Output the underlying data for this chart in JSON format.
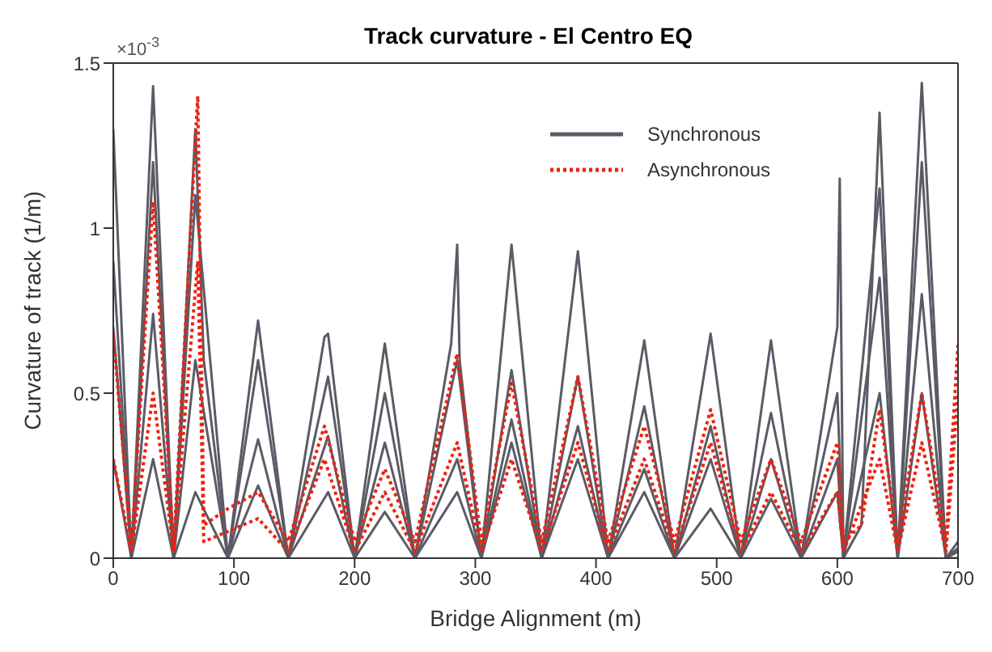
{
  "chart_data": {
    "type": "line",
    "title": "Track curvature - El Centro EQ",
    "xlabel": "Bridge Alignment (m)",
    "ylabel": "Curvature of track (1/m)",
    "annotations": [
      "×10$^{-3}$"
    ],
    "xlim": [
      0,
      700
    ],
    "xticks": [
      0,
      100,
      200,
      300,
      400,
      500,
      600,
      700
    ],
    "ylim": [
      0,
      1.5
    ],
    "yticks": [
      0,
      0.5,
      1,
      1.5
    ],
    "legend": "top right",
    "marker": "none",
    "series": [
      {
        "name": "Synchronous",
        "color": "#5b5b66",
        "line_style": "solid",
        "x": [
          0,
          15,
          33,
          50,
          68,
          75,
          95,
          120,
          145,
          175,
          178,
          200,
          225,
          250,
          280,
          285,
          287,
          305,
          330,
          355,
          385,
          410,
          440,
          465,
          495,
          520,
          545,
          570,
          600,
          602,
          605,
          620,
          635,
          650,
          670,
          690,
          700
        ],
        "values": [
          1.3,
          0,
          1.43,
          0,
          1.3,
          0.6,
          0,
          0.72,
          0,
          0.67,
          0.68,
          0,
          0.65,
          0,
          0.65,
          0.95,
          0.6,
          0,
          0.95,
          0,
          0.93,
          0,
          0.66,
          0,
          0.68,
          0,
          0.66,
          0,
          0.7,
          1.15,
          0,
          0.1,
          1.35,
          0,
          1.44,
          0,
          0.05
        ]
      },
      {
        "color": "#5b5b66",
        "line_style": "solid",
        "x": [
          0,
          15,
          33,
          50,
          68,
          95,
          120,
          145,
          178,
          200,
          225,
          250,
          285,
          305,
          330,
          355,
          385,
          410,
          440,
          465,
          495,
          520,
          545,
          570,
          600,
          605,
          635,
          650,
          670,
          690,
          700
        ],
        "values": [
          0.9,
          0,
          1.2,
          0,
          1.1,
          0,
          0.6,
          0,
          0.55,
          0,
          0.5,
          0,
          0.6,
          0,
          0.57,
          0,
          0.55,
          0,
          0.46,
          0,
          0.4,
          0,
          0.44,
          0,
          0.5,
          0,
          1.12,
          0,
          1.2,
          0,
          0.03
        ]
      },
      {
        "color": "#5b5b66",
        "line_style": "solid",
        "x": [
          0,
          15,
          33,
          50,
          68,
          95,
          120,
          145,
          178,
          200,
          225,
          250,
          285,
          305,
          330,
          355,
          385,
          410,
          440,
          465,
          495,
          520,
          545,
          570,
          600,
          605,
          635,
          650,
          670,
          690,
          700
        ],
        "values": [
          0.7,
          0,
          0.74,
          0,
          0.6,
          0,
          0.36,
          0,
          0.37,
          0,
          0.35,
          0,
          0.3,
          0,
          0.42,
          0,
          0.4,
          0,
          0.27,
          0,
          0.3,
          0,
          0.3,
          0,
          0.3,
          0,
          0.85,
          0,
          0.8,
          0,
          0.02
        ]
      },
      {
        "color": "#5b5b66",
        "line_style": "solid",
        "x": [
          0,
          15,
          33,
          50,
          68,
          95,
          120,
          145,
          178,
          200,
          225,
          250,
          285,
          305,
          330,
          355,
          385,
          410,
          440,
          465,
          495,
          520,
          545,
          570,
          600,
          605,
          635,
          650,
          670,
          690,
          700
        ],
        "values": [
          0.3,
          0,
          0.3,
          0,
          0.2,
          0,
          0.22,
          0,
          0.2,
          0,
          0.14,
          0,
          0.2,
          0,
          0.35,
          0,
          0.3,
          0,
          0.2,
          0,
          0.15,
          0,
          0.18,
          0,
          0.2,
          0,
          0.5,
          0,
          0.5,
          0,
          0
        ]
      },
      {
        "name": "Asynchronous",
        "color": "#ee2211",
        "line_style": "dotted",
        "x": [
          0,
          15,
          33,
          50,
          70,
          75,
          95,
          120,
          145,
          175,
          200,
          225,
          250,
          285,
          305,
          330,
          355,
          385,
          410,
          440,
          465,
          495,
          520,
          545,
          570,
          600,
          605,
          620,
          635,
          650,
          670,
          690,
          700
        ],
        "values": [
          0.68,
          0.03,
          1.08,
          0.03,
          1.4,
          0.1,
          0.15,
          0.2,
          0.05,
          0.4,
          0.05,
          0.27,
          0.05,
          0.62,
          0.05,
          0.53,
          0.05,
          0.55,
          0.05,
          0.4,
          0.05,
          0.45,
          0.05,
          0.3,
          0.05,
          0.35,
          0.05,
          0.1,
          0.45,
          0.05,
          0.5,
          0.05,
          0.65
        ]
      },
      {
        "color": "#ee2211",
        "line_style": "dotted",
        "x": [
          0,
          15,
          33,
          50,
          70,
          75,
          120,
          145,
          175,
          200,
          225,
          250,
          285,
          305,
          330,
          355,
          385,
          410,
          440,
          465,
          495,
          520,
          545,
          570,
          600,
          605,
          635,
          650,
          670,
          690,
          700
        ],
        "values": [
          0.3,
          0.02,
          0.5,
          0.02,
          0.9,
          0.05,
          0.12,
          0.02,
          0.3,
          0.02,
          0.2,
          0.02,
          0.35,
          0.02,
          0.3,
          0.02,
          0.35,
          0.02,
          0.3,
          0.02,
          0.35,
          0.02,
          0.2,
          0.02,
          0.2,
          0.02,
          0.3,
          0.02,
          0.35,
          0.02,
          0.5
        ]
      }
    ]
  }
}
